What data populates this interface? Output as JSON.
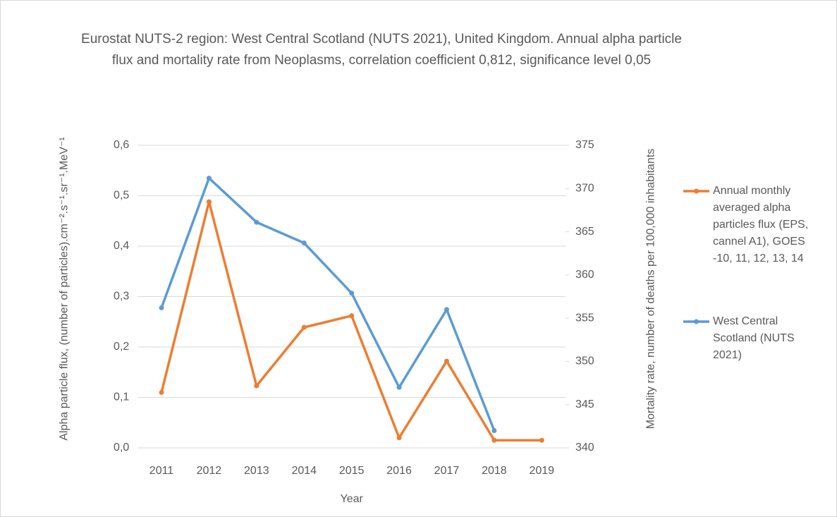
{
  "chart_data": {
    "type": "line",
    "title": "Eurostat NUTS-2 region: West Central Scotland (NUTS 2021), United Kingdom. Annual alpha particle flux and mortality rate from Neoplasms, correlation coefficient 0,812, significance level 0,05",
    "x_label": "Year",
    "y_label": "Alpha particle flux, (number of particles).cm⁻².s⁻¹.sr⁻¹.MeV⁻¹",
    "y2_label": "Mortality rate, number of deaths per 100,000 inhabitants",
    "categories": [
      "2011",
      "2012",
      "2013",
      "2014",
      "2015",
      "2016",
      "2017",
      "2018",
      "2019"
    ],
    "series": [
      {
        "name": "Annual monthly averaged alpha particles flux (EPS, cannel A1), GOES -10, 11, 12, 13, 14",
        "color": "#ed7d31",
        "axis": "y",
        "values": [
          0.11,
          0.488,
          0.123,
          0.239,
          0.262,
          0.02,
          0.172,
          0.015,
          0.015
        ]
      },
      {
        "name": "West Central Scotland (NUTS 2021)",
        "color": "#5b9bd5",
        "axis": "y2",
        "values": [
          356.2,
          371.2,
          366.1,
          363.7,
          357.9,
          347.0,
          356.0,
          342.0,
          null
        ]
      }
    ],
    "ylim": [
      0,
      0.6
    ],
    "yticks": [
      {
        "value": 0,
        "label": "0,0"
      },
      {
        "value": 0.1,
        "label": "0,1"
      },
      {
        "value": 0.2,
        "label": "0,2"
      },
      {
        "value": 0.3,
        "label": "0,3"
      },
      {
        "value": 0.4,
        "label": "0,4"
      },
      {
        "value": 0.5,
        "label": "0,5"
      },
      {
        "value": 0.6,
        "label": "0,6"
      }
    ],
    "y2lim": [
      340,
      375
    ],
    "y2ticks": [
      340,
      345,
      350,
      355,
      360,
      365,
      370,
      375
    ],
    "grid": true,
    "legend": "right"
  }
}
